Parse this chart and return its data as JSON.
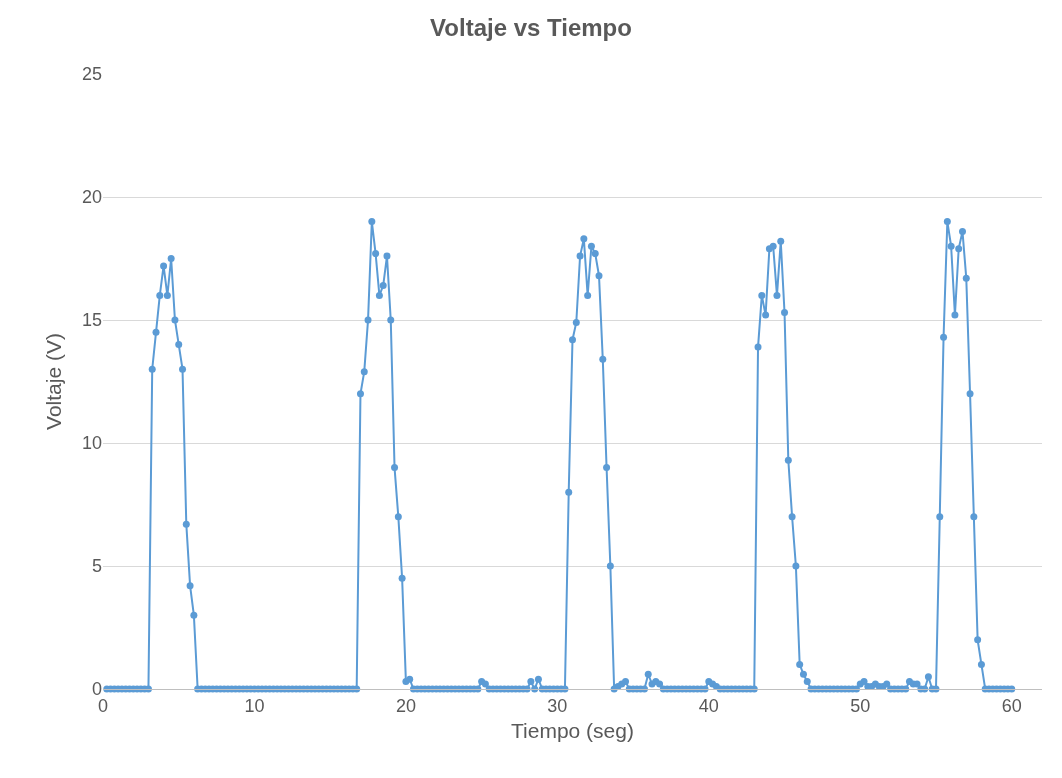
{
  "chart_data": {
    "type": "line",
    "title": "Voltaje vs Tiempo",
    "xlabel": "Tiempo (seg)",
    "ylabel": "Voltaje (V)",
    "xlim": [
      0,
      62
    ],
    "xticks": [
      0,
      10,
      20,
      30,
      40,
      50,
      60
    ],
    "ylim": [
      0,
      25
    ],
    "yticks": [
      0,
      5,
      10,
      15,
      20,
      25
    ],
    "grid": "y",
    "marker": "circle",
    "line_style": "solid",
    "x": [
      0.25,
      0.5,
      0.75,
      1,
      1.25,
      1.5,
      1.75,
      2,
      2.25,
      2.5,
      2.75,
      3,
      3.25,
      3.5,
      3.75,
      4,
      4.25,
      4.5,
      4.75,
      5,
      5.25,
      5.5,
      5.75,
      6,
      6.25,
      6.5,
      6.75,
      7,
      7.25,
      7.5,
      7.75,
      8,
      8.25,
      8.5,
      8.75,
      9,
      9.25,
      9.5,
      9.75,
      10,
      10.25,
      10.5,
      10.75,
      11,
      11.25,
      11.5,
      11.75,
      12,
      12.25,
      12.5,
      12.75,
      13,
      13.25,
      13.5,
      13.75,
      14,
      14.25,
      14.5,
      14.75,
      15,
      15.25,
      15.5,
      15.75,
      16,
      16.25,
      16.5,
      16.75,
      17,
      17.25,
      17.5,
      17.75,
      18,
      18.25,
      18.5,
      18.75,
      19,
      19.25,
      19.5,
      19.75,
      20,
      20.25,
      20.5,
      20.75,
      21,
      21.25,
      21.5,
      21.75,
      22,
      22.25,
      22.5,
      22.75,
      23,
      23.25,
      23.5,
      23.75,
      24,
      24.25,
      24.5,
      24.75,
      25,
      25.25,
      25.5,
      25.75,
      26,
      26.25,
      26.5,
      26.75,
      27,
      27.25,
      27.5,
      27.75,
      28,
      28.25,
      28.5,
      28.75,
      29,
      29.25,
      29.5,
      29.75,
      30,
      30.25,
      30.5,
      30.75,
      31,
      31.25,
      31.5,
      31.75,
      32,
      32.25,
      32.5,
      32.75,
      33,
      33.25,
      33.5,
      33.75,
      34,
      34.25,
      34.5,
      34.75,
      35,
      35.25,
      35.5,
      35.75,
      36,
      36.25,
      36.5,
      36.75,
      37,
      37.25,
      37.5,
      37.75,
      38,
      38.25,
      38.5,
      38.75,
      39,
      39.25,
      39.5,
      39.75,
      40,
      40.25,
      40.5,
      40.75,
      41,
      41.25,
      41.5,
      41.75,
      42,
      42.25,
      42.5,
      42.75,
      43,
      43.25,
      43.5,
      43.75,
      44,
      44.25,
      44.5,
      44.75,
      45,
      45.25,
      45.5,
      45.75,
      46,
      46.25,
      46.5,
      46.75,
      47,
      47.25,
      47.5,
      47.75,
      48,
      48.25,
      48.5,
      48.75,
      49,
      49.25,
      49.5,
      49.75,
      50,
      50.25,
      50.5,
      50.75,
      51,
      51.25,
      51.5,
      51.75,
      52,
      52.25,
      52.5,
      52.75,
      53,
      53.25,
      53.5,
      53.75,
      54,
      54.25,
      54.5,
      54.75,
      55,
      55.25,
      55.5,
      55.75,
      56,
      56.25,
      56.5,
      56.75,
      57,
      57.25,
      57.5,
      57.75,
      58,
      58.25,
      58.5,
      58.75,
      59,
      59.25,
      59.5,
      59.75,
      60
    ],
    "series": [
      {
        "color": "#5b9bd5",
        "values": [
          0,
          0,
          0,
          0,
          0,
          0,
          0,
          0,
          0,
          0,
          0,
          0,
          13,
          14.5,
          16,
          17.2,
          16,
          17.5,
          15,
          14,
          13,
          6.7,
          4.2,
          3,
          0,
          0,
          0,
          0,
          0,
          0,
          0,
          0,
          0,
          0,
          0,
          0,
          0,
          0,
          0,
          0,
          0,
          0,
          0,
          0,
          0,
          0,
          0,
          0,
          0,
          0,
          0,
          0,
          0,
          0,
          0,
          0,
          0,
          0,
          0,
          0,
          0,
          0,
          0,
          0,
          0,
          0,
          0,
          12,
          12.9,
          15,
          19,
          17.7,
          16,
          16.4,
          17.6,
          15,
          9,
          7,
          4.5,
          0.3,
          0.4,
          0,
          0,
          0,
          0,
          0,
          0,
          0,
          0,
          0,
          0,
          0,
          0,
          0,
          0,
          0,
          0,
          0,
          0,
          0.3,
          0.2,
          0,
          0,
          0,
          0,
          0,
          0,
          0,
          0,
          0,
          0,
          0,
          0.3,
          0,
          0.4,
          0,
          0,
          0,
          0,
          0,
          0,
          0,
          8,
          14.2,
          14.9,
          17.6,
          18.3,
          16,
          18,
          17.7,
          16.8,
          13.4,
          9,
          5,
          0,
          0.1,
          0.2,
          0.3,
          0,
          0,
          0,
          0,
          0,
          0.6,
          0.2,
          0.3,
          0.2,
          0,
          0,
          0,
          0,
          0,
          0,
          0,
          0,
          0,
          0,
          0,
          0,
          0.3,
          0.2,
          0.1,
          0,
          0,
          0,
          0,
          0,
          0,
          0,
          0,
          0,
          0,
          13.9,
          16,
          15.2,
          17.9,
          18,
          16,
          18.2,
          15.3,
          9.3,
          7,
          5,
          1,
          0.6,
          0.3,
          0,
          0,
          0,
          0,
          0,
          0,
          0,
          0,
          0,
          0,
          0,
          0,
          0,
          0.2,
          0.3,
          0.1,
          0.1,
          0.2,
          0.1,
          0.1,
          0.2,
          0,
          0,
          0,
          0,
          0,
          0.3,
          0.2,
          0.2,
          0,
          0,
          0.5,
          0,
          0,
          7,
          14.3,
          19,
          18,
          15.2,
          17.9,
          18.6,
          16.7,
          12,
          7,
          2,
          1,
          0,
          0,
          0,
          0,
          0,
          0,
          0,
          0
        ]
      }
    ]
  }
}
